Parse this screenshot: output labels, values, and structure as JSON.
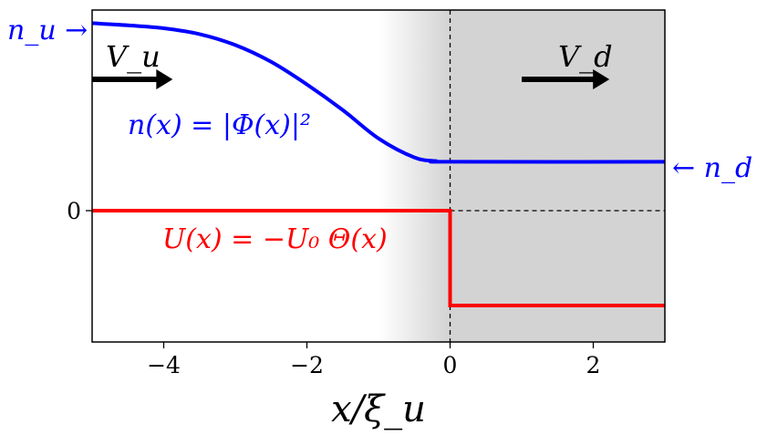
{
  "chart_data": {
    "type": "line",
    "title": "",
    "xlabel": "x/ξ_u",
    "ylabel": "",
    "xlim": [
      -5,
      3
    ],
    "ylim": [
      -1.8,
      2.75
    ],
    "x_ticks": [
      -4,
      -2,
      0,
      2
    ],
    "x_tick_labels": [
      "−4",
      "−2",
      "0",
      "2"
    ],
    "y_ticks": [
      0
    ],
    "y_tick_labels": [
      "0"
    ],
    "grid": false,
    "legend": "none",
    "shaded_region": {
      "x_from": 0,
      "x_to": 3,
      "gradient_from": -1,
      "color": "#d3d3d3"
    },
    "reference_lines": {
      "vertical_x": 0,
      "horizontal_y": 0,
      "style": "dashed",
      "color": "#000000"
    },
    "series": [
      {
        "key": "density",
        "color": "#0000ff",
        "x": [
          -5,
          -4.5,
          -4,
          -3.5,
          -3,
          -2.5,
          -2,
          -1.5,
          -1,
          -0.5,
          -0.2,
          0,
          3
        ],
        "y": [
          2.57,
          2.54,
          2.5,
          2.42,
          2.27,
          2.04,
          1.73,
          1.38,
          0.99,
          0.73,
          0.68,
          0.67,
          0.67
        ]
      },
      {
        "key": "potential",
        "color": "#ff0000",
        "x": [
          -5,
          0,
          0,
          3
        ],
        "y": [
          0,
          0,
          -1.3,
          -1.3
        ]
      }
    ],
    "annotations": {
      "n_u": {
        "text": "n_u →",
        "color": "#0000ff"
      },
      "n_d": {
        "text": "← n_d",
        "color": "#0000ff"
      },
      "V_u": {
        "text": "V_u",
        "arrow_x": [
          -5,
          -3.9
        ],
        "y": 1.8,
        "color": "#000000"
      },
      "V_d": {
        "text": "V_d",
        "arrow_x": [
          1,
          2.2
        ],
        "y": 1.8,
        "color": "#000000"
      },
      "n_eq": {
        "text": "n(x) = |Φ(x)|²",
        "color": "#0000ff"
      },
      "U_eq": {
        "text": "U(x) = −U₀ Θ(x)",
        "color": "#ff0000"
      }
    }
  }
}
